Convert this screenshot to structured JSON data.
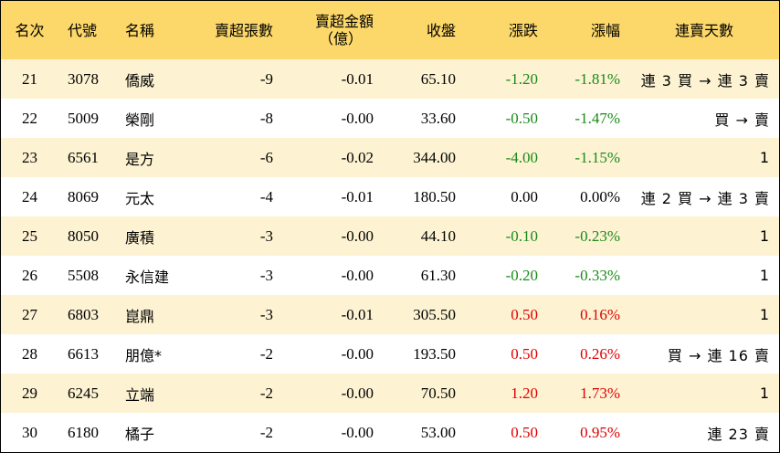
{
  "headers": {
    "rank": "名次",
    "code": "代號",
    "name": "名稱",
    "net_sell_lots": "賣超張數",
    "net_sell_amount_line1": "賣超金額",
    "net_sell_amount_line2": "（億）",
    "close": "收盤",
    "change": "漲跌",
    "change_pct": "漲幅",
    "streak": "連賣天數"
  },
  "rows": [
    {
      "rank": "21",
      "code": "3078",
      "name": "僑威",
      "lots": "-9",
      "amount": "-0.01",
      "close": "65.10",
      "change": "-1.20",
      "pct": "-1.81%",
      "trend": "down",
      "streak": "連 3 買 → 連 3 賣"
    },
    {
      "rank": "22",
      "code": "5009",
      "name": "榮剛",
      "lots": "-8",
      "amount": "-0.00",
      "close": "33.60",
      "change": "-0.50",
      "pct": "-1.47%",
      "trend": "down",
      "streak": "買 → 賣"
    },
    {
      "rank": "23",
      "code": "6561",
      "name": "是方",
      "lots": "-6",
      "amount": "-0.02",
      "close": "344.00",
      "change": "-4.00",
      "pct": "-1.15%",
      "trend": "down",
      "streak": "1"
    },
    {
      "rank": "24",
      "code": "8069",
      "name": "元太",
      "lots": "-4",
      "amount": "-0.01",
      "close": "180.50",
      "change": "0.00",
      "pct": "0.00%",
      "trend": "flat",
      "streak": "連 2 買 → 連 3 賣"
    },
    {
      "rank": "25",
      "code": "8050",
      "name": "廣積",
      "lots": "-3",
      "amount": "-0.00",
      "close": "44.10",
      "change": "-0.10",
      "pct": "-0.23%",
      "trend": "down",
      "streak": "1"
    },
    {
      "rank": "26",
      "code": "5508",
      "name": "永信建",
      "lots": "-3",
      "amount": "-0.00",
      "close": "61.30",
      "change": "-0.20",
      "pct": "-0.33%",
      "trend": "down",
      "streak": "1"
    },
    {
      "rank": "27",
      "code": "6803",
      "name": "崑鼎",
      "lots": "-3",
      "amount": "-0.01",
      "close": "305.50",
      "change": "0.50",
      "pct": "0.16%",
      "trend": "up",
      "streak": "1"
    },
    {
      "rank": "28",
      "code": "6613",
      "name": "朋億*",
      "lots": "-2",
      "amount": "-0.00",
      "close": "193.50",
      "change": "0.50",
      "pct": "0.26%",
      "trend": "up",
      "streak": "買 → 連 16 賣"
    },
    {
      "rank": "29",
      "code": "6245",
      "name": "立端",
      "lots": "-2",
      "amount": "-0.00",
      "close": "70.50",
      "change": "1.20",
      "pct": "1.73%",
      "trend": "up",
      "streak": "1"
    },
    {
      "rank": "30",
      "code": "6180",
      "name": "橘子",
      "lots": "-2",
      "amount": "-0.00",
      "close": "53.00",
      "change": "0.50",
      "pct": "0.95%",
      "trend": "up",
      "streak": "連 23 賣"
    }
  ],
  "colors": {
    "header_bg": "#fcd769",
    "odd_row_bg": "#fdf3d3",
    "up": "#e00000",
    "down": "#1a8a1a"
  }
}
